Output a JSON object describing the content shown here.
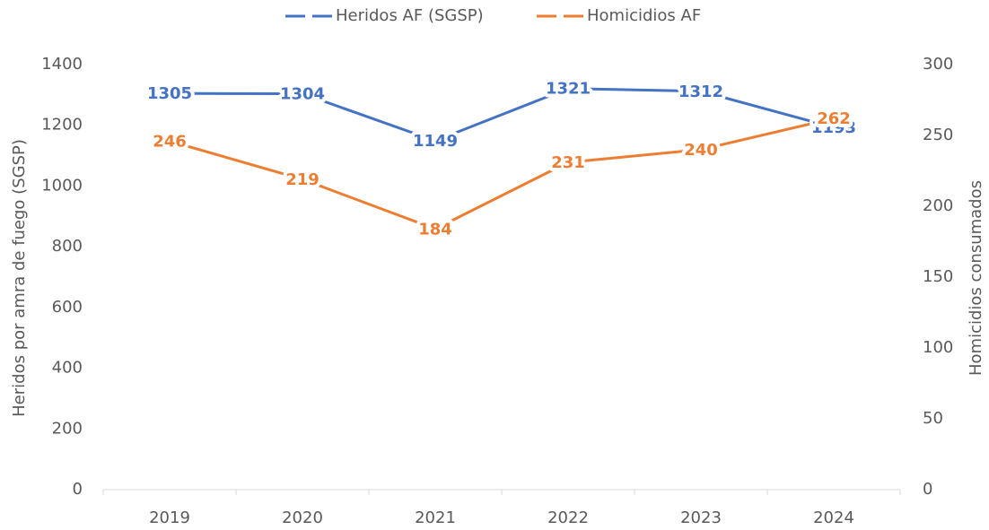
{
  "chart_data": {
    "type": "line",
    "categories": [
      "2019",
      "2020",
      "2021",
      "2022",
      "2023",
      "2024"
    ],
    "series": [
      {
        "name": "Heridos AF (SGSP)",
        "color": "#4472c4",
        "values": [
          1305,
          1304,
          1149,
          1321,
          1312,
          1193
        ]
      },
      {
        "name": "Homicidios AF",
        "color": "#ed7d31",
        "axis": "y2",
        "values": [
          246,
          219,
          184,
          231,
          240,
          262
        ]
      }
    ],
    "ylabel": "Heridos por amra de fuego (SGSP)",
    "y2label": "Homicidios consumados",
    "ylim": [
      0,
      1400
    ],
    "yticks": [
      0,
      200,
      400,
      600,
      800,
      1000,
      1200,
      1400
    ],
    "y2lim": [
      0,
      300
    ],
    "y2ticks": [
      0,
      50,
      100,
      150,
      200,
      250,
      300
    ],
    "grid": false,
    "legend": "top"
  }
}
